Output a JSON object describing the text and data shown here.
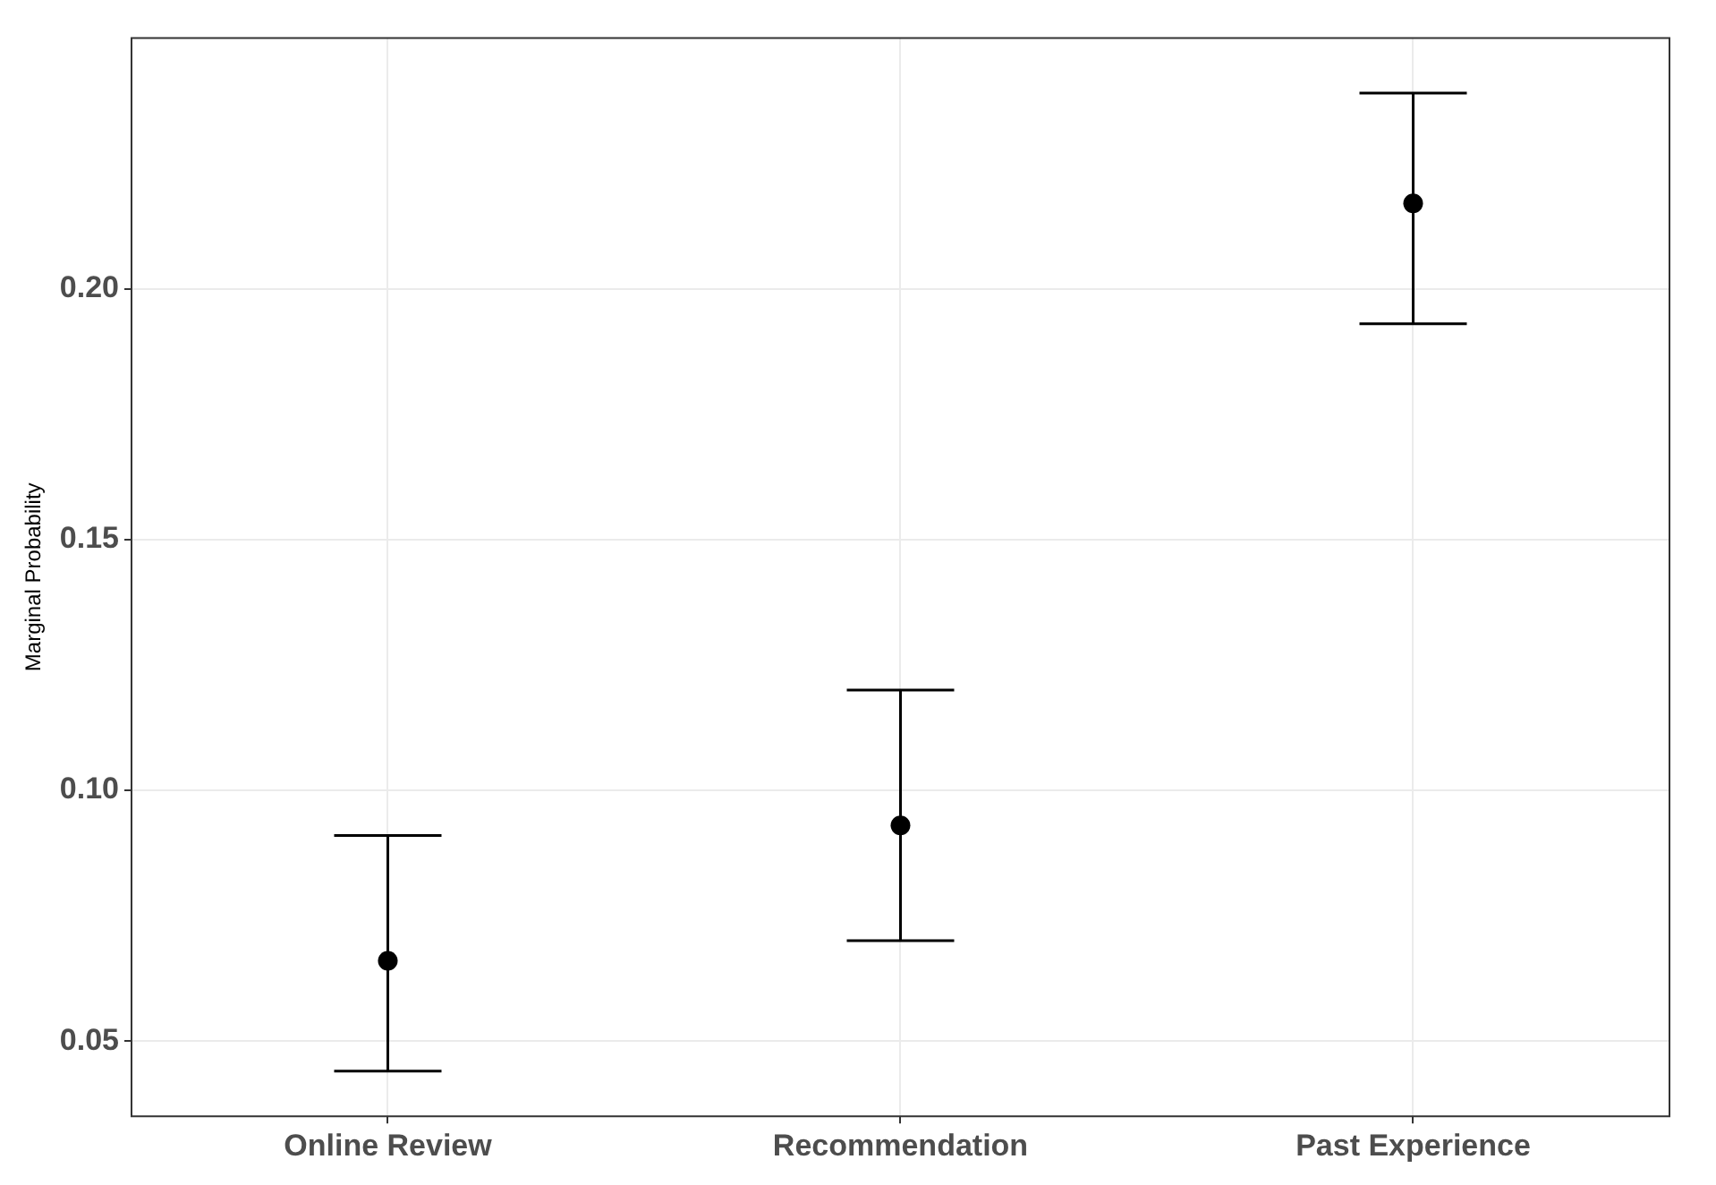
{
  "chart_data": {
    "type": "scatter",
    "ylabel": "Marginal Probability",
    "categories": [
      "Online Review",
      "Recommendation",
      "Past Experience"
    ],
    "values": [
      0.066,
      0.093,
      0.217
    ],
    "errors": [
      [
        0.044,
        0.091
      ],
      [
        0.07,
        0.12
      ],
      [
        0.193,
        0.239
      ]
    ],
    "color": "#000000",
    "marker": "circle",
    "ylim": [
      0.035,
      0.25
    ],
    "yticks": [
      0.05,
      {
        "value": 0.1,
        "label": "0.10"
      },
      0.15,
      {
        "value": 0.2,
        "label": "0.20"
      }
    ],
    "grid": true,
    "legend": false
  }
}
